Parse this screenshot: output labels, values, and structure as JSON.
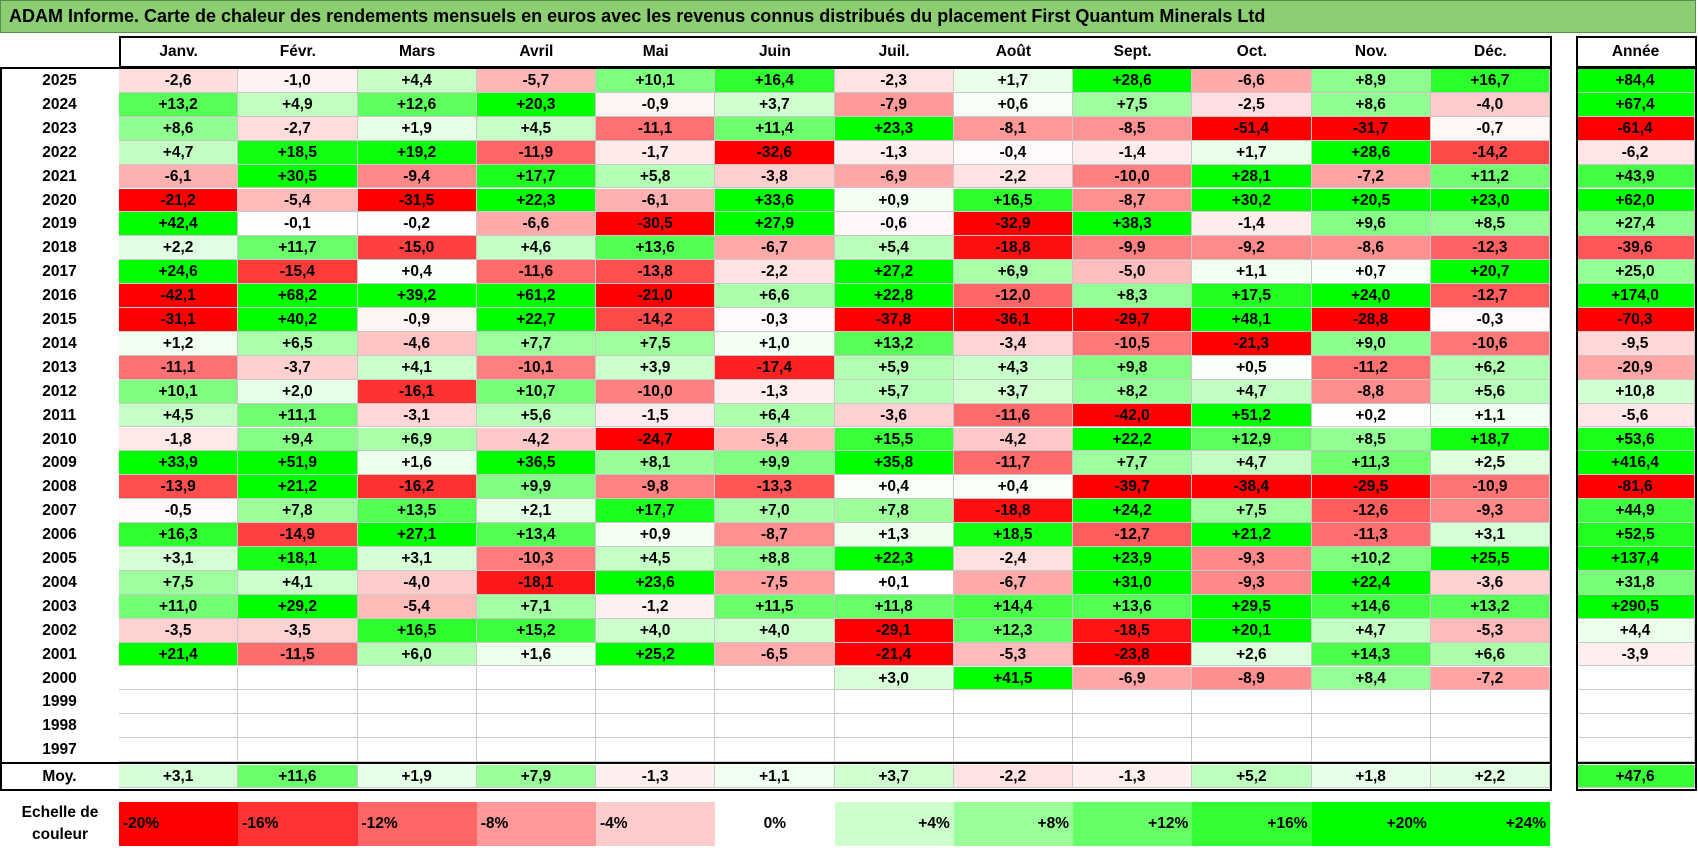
{
  "title": "ADAM Informe. Carte de chaleur des rendements mensuels en euros avec les revenus connus distribués du placement First Quantum Minerals Ltd",
  "colors": {
    "title_bg": "#8bcf72",
    "max_red": "#ff0000",
    "max_green": "#00ff00",
    "neutral": "#ffffff"
  },
  "chart_data": {
    "type": "heatmap",
    "months": [
      "Janv.",
      "Févr.",
      "Mars",
      "Avril",
      "Mai",
      "Juin",
      "Juil.",
      "Août",
      "Sept.",
      "Oct.",
      "Nov.",
      "Déc."
    ],
    "year_header": "Année",
    "avg_label": "Moy.",
    "rows": [
      {
        "year": "2025",
        "values": [
          "-2,6",
          "-1,0",
          "+4,4",
          "-5,7",
          "+10,1",
          "+16,4",
          "-2,3",
          "+1,7",
          "+28,6",
          "-6,6",
          "+8,9",
          "+16,7"
        ],
        "annual": "+84,4"
      },
      {
        "year": "2024",
        "values": [
          "+13,2",
          "+4,9",
          "+12,6",
          "+20,3",
          "-0,9",
          "+3,7",
          "-7,9",
          "+0,6",
          "+7,5",
          "-2,5",
          "+8,6",
          "-4,0"
        ],
        "annual": "+67,4"
      },
      {
        "year": "2023",
        "values": [
          "+8,6",
          "-2,7",
          "+1,9",
          "+4,5",
          "-11,1",
          "+11,4",
          "+23,3",
          "-8,1",
          "-8,5",
          "-51,4",
          "-31,7",
          "-0,7"
        ],
        "annual": "-61,4"
      },
      {
        "year": "2022",
        "values": [
          "+4,7",
          "+18,5",
          "+19,2",
          "-11,9",
          "-1,7",
          "-32,6",
          "-1,3",
          "-0,4",
          "-1,4",
          "+1,7",
          "+28,6",
          "-14,2"
        ],
        "annual": "-6,2"
      },
      {
        "year": "2021",
        "values": [
          "-6,1",
          "+30,5",
          "-9,4",
          "+17,7",
          "+5,8",
          "-3,8",
          "-6,9",
          "-2,2",
          "-10,0",
          "+28,1",
          "-7,2",
          "+11,2"
        ],
        "annual": "+43,9"
      },
      {
        "year": "2020",
        "values": [
          "-21,2",
          "-5,4",
          "-31,5",
          "+22,3",
          "-6,1",
          "+33,6",
          "+0,9",
          "+16,5",
          "-8,7",
          "+30,2",
          "+20,5",
          "+23,0"
        ],
        "annual": "+62,0"
      },
      {
        "year": "2019",
        "values": [
          "+42,4",
          "-0,1",
          "-0,2",
          "-6,6",
          "-30,5",
          "+27,9",
          "-0,6",
          "-32,9",
          "+38,3",
          "-1,4",
          "+9,6",
          "+8,5"
        ],
        "annual": "+27,4"
      },
      {
        "year": "2018",
        "values": [
          "+2,2",
          "+11,7",
          "-15,0",
          "+4,6",
          "+13,6",
          "-6,7",
          "+5,4",
          "-18,8",
          "-9,9",
          "-9,2",
          "-8,6",
          "-12,3"
        ],
        "annual": "-39,6"
      },
      {
        "year": "2017",
        "values": [
          "+24,6",
          "-15,4",
          "+0,4",
          "-11,6",
          "-13,8",
          "-2,2",
          "+27,2",
          "+6,9",
          "-5,0",
          "+1,1",
          "+0,7",
          "+20,7"
        ],
        "annual": "+25,0"
      },
      {
        "year": "2016",
        "values": [
          "-42,1",
          "+68,2",
          "+39,2",
          "+61,2",
          "-21,0",
          "+6,6",
          "+22,8",
          "-12,0",
          "+8,3",
          "+17,5",
          "+24,0",
          "-12,7"
        ],
        "annual": "+174,0"
      },
      {
        "year": "2015",
        "values": [
          "-31,1",
          "+40,2",
          "-0,9",
          "+22,7",
          "-14,2",
          "-0,3",
          "-37,8",
          "-36,1",
          "-29,7",
          "+48,1",
          "-28,8",
          "-0,3"
        ],
        "annual": "-70,3"
      },
      {
        "year": "2014",
        "values": [
          "+1,2",
          "+6,5",
          "-4,6",
          "+7,7",
          "+7,5",
          "+1,0",
          "+13,2",
          "-3,4",
          "-10,5",
          "-21,3",
          "+9,0",
          "-10,6"
        ],
        "annual": "-9,5"
      },
      {
        "year": "2013",
        "values": [
          "-11,1",
          "-3,7",
          "+4,1",
          "-10,1",
          "+3,9",
          "-17,4",
          "+5,9",
          "+4,3",
          "+9,8",
          "+0,5",
          "-11,2",
          "+6,2"
        ],
        "annual": "-20,9"
      },
      {
        "year": "2012",
        "values": [
          "+10,1",
          "+2,0",
          "-16,1",
          "+10,7",
          "-10,0",
          "-1,3",
          "+5,7",
          "+3,7",
          "+8,2",
          "+4,7",
          "-8,8",
          "+5,6"
        ],
        "annual": "+10,8"
      },
      {
        "year": "2011",
        "values": [
          "+4,5",
          "+11,1",
          "-3,1",
          "+5,6",
          "-1,5",
          "+6,4",
          "-3,6",
          "-11,6",
          "-42,0",
          "+51,2",
          "+0,2",
          "+1,1"
        ],
        "annual": "-5,6"
      },
      {
        "year": "2010",
        "values": [
          "-1,8",
          "+9,4",
          "+6,9",
          "-4,2",
          "-24,7",
          "-5,4",
          "+15,5",
          "-4,2",
          "+22,2",
          "+12,9",
          "+8,5",
          "+18,7"
        ],
        "annual": "+53,6"
      },
      {
        "year": "2009",
        "values": [
          "+33,9",
          "+51,9",
          "+1,6",
          "+36,5",
          "+8,1",
          "+9,9",
          "+35,8",
          "-11,7",
          "+7,7",
          "+4,7",
          "+11,3",
          "+2,5"
        ],
        "annual": "+416,4"
      },
      {
        "year": "2008",
        "values": [
          "-13,9",
          "+21,2",
          "-16,2",
          "+9,9",
          "-9,8",
          "-13,3",
          "+0,4",
          "+0,4",
          "-39,7",
          "-38,4",
          "-29,5",
          "-10,9"
        ],
        "annual": "-81,6"
      },
      {
        "year": "2007",
        "values": [
          "-0,5",
          "+7,8",
          "+13,5",
          "+2,1",
          "+17,7",
          "+7,0",
          "+7,8",
          "-18,8",
          "+24,2",
          "+7,5",
          "-12,6",
          "-9,3"
        ],
        "annual": "+44,9"
      },
      {
        "year": "2006",
        "values": [
          "+16,3",
          "-14,9",
          "+27,1",
          "+13,4",
          "+0,9",
          "-8,7",
          "+1,3",
          "+18,5",
          "-12,7",
          "+21,2",
          "-11,3",
          "+3,1"
        ],
        "annual": "+52,5"
      },
      {
        "year": "2005",
        "values": [
          "+3,1",
          "+18,1",
          "+3,1",
          "-10,3",
          "+4,5",
          "+8,8",
          "+22,3",
          "-2,4",
          "+23,9",
          "-9,3",
          "+10,2",
          "+25,5"
        ],
        "annual": "+137,4"
      },
      {
        "year": "2004",
        "values": [
          "+7,5",
          "+4,1",
          "-4,0",
          "-18,1",
          "+23,6",
          "-7,5",
          "+0,1",
          "-6,7",
          "+31,0",
          "-9,3",
          "+22,4",
          "-3,6"
        ],
        "annual": "+31,8"
      },
      {
        "year": "2003",
        "values": [
          "+11,0",
          "+29,2",
          "-5,4",
          "+7,1",
          "-1,2",
          "+11,5",
          "+11,8",
          "+14,4",
          "+13,6",
          "+29,5",
          "+14,6",
          "+13,2"
        ],
        "annual": "+290,5"
      },
      {
        "year": "2002",
        "values": [
          "-3,5",
          "-3,5",
          "+16,5",
          "+15,2",
          "+4,0",
          "+4,0",
          "-29,1",
          "+12,3",
          "-18,5",
          "+20,1",
          "+4,7",
          "-5,3"
        ],
        "annual": "+4,4"
      },
      {
        "year": "2001",
        "values": [
          "+21,4",
          "-11,5",
          "+6,0",
          "+1,6",
          "+25,2",
          "-6,5",
          "-21,4",
          "-5,3",
          "-23,8",
          "+2,6",
          "+14,3",
          "+6,6"
        ],
        "annual": "-3,9"
      },
      {
        "year": "2000",
        "values": [
          "",
          "",
          "",
          "",
          "",
          "",
          "+3,0",
          "+41,5",
          "-6,9",
          "-8,9",
          "+8,4",
          "-7,2"
        ],
        "annual": ""
      },
      {
        "year": "1999",
        "values": [
          "",
          "",
          "",
          "",
          "",
          "",
          "",
          "",
          "",
          "",
          "",
          ""
        ],
        "annual": ""
      },
      {
        "year": "1998",
        "values": [
          "",
          "",
          "",
          "",
          "",
          "",
          "",
          "",
          "",
          "",
          "",
          ""
        ],
        "annual": ""
      },
      {
        "year": "1997",
        "values": [
          "",
          "",
          "",
          "",
          "",
          "",
          "",
          "",
          "",
          "",
          "",
          ""
        ],
        "annual": ""
      }
    ],
    "average": {
      "values": [
        "+3,1",
        "+11,6",
        "+1,9",
        "+7,9",
        "-1,3",
        "+1,1",
        "+3,7",
        "-2,2",
        "-1,3",
        "+5,2",
        "+1,8",
        "+2,2"
      ],
      "annual": "+47,6"
    },
    "scale": {
      "label": "Echelle de couleur",
      "items": [
        {
          "label": "-20%",
          "value": -20
        },
        {
          "label": "-16%",
          "value": -16
        },
        {
          "label": "-12%",
          "value": -12
        },
        {
          "label": "-8%",
          "value": -8
        },
        {
          "label": "-4%",
          "value": -4
        },
        {
          "label": "0%",
          "value": 0
        },
        {
          "label": "+4%",
          "value": 4
        },
        {
          "label": "+8%",
          "value": 8
        },
        {
          "label": "+12%",
          "value": 12
        },
        {
          "label": "+16%",
          "value": 16
        },
        {
          "label": "+20%",
          "value": 20
        },
        {
          "label": "+24%",
          "value": 24
        }
      ]
    }
  }
}
